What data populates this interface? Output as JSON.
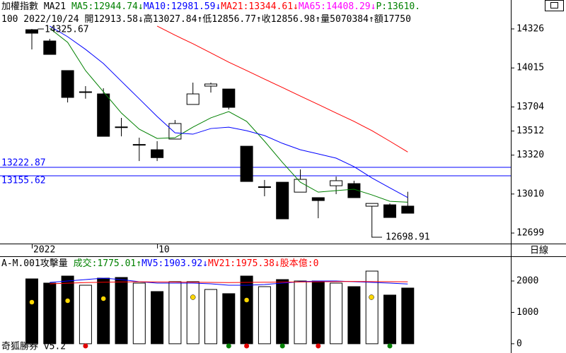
{
  "header": {
    "line1": [
      {
        "text": "加權指數 MA21 ",
        "color": "#000000"
      },
      {
        "text": "MA5:12944.74↓",
        "color": "#008000"
      },
      {
        "text": "MA10:12981.59↓",
        "color": "#0000ff"
      },
      {
        "text": "MA21:13344.61↓",
        "color": "#ff0000"
      },
      {
        "text": "MA65:14408.29↓",
        "color": "#ff00ff"
      },
      {
        "text": "P:13610.",
        "color": "#008000"
      }
    ],
    "line2": [
      {
        "text": "100 2022/10/24 開12913.58↓高13027.84↑低12856.77↑收12856.98↑量5070384↑額17750",
        "color": "#000000"
      }
    ]
  },
  "ui": {
    "period": "日線",
    "footer": "奇狐勝券 v5.2"
  },
  "chart_data": [
    {
      "type": "candlestick",
      "categories": [
        "2022",
        null,
        null,
        null,
        null,
        null,
        null,
        "10",
        null,
        null,
        null,
        null,
        null,
        null,
        null,
        null,
        null,
        null,
        null,
        null,
        null,
        null
      ],
      "open": [
        14320,
        14230,
        13994,
        13825,
        13808,
        13545,
        13405,
        13363,
        13448,
        13724,
        13870,
        13847,
        13391,
        13068,
        13104,
        13025,
        12981,
        13076,
        13093,
        12913,
        12924,
        12913.58
      ],
      "high": [
        14325.67,
        14247,
        13994,
        13870,
        13853,
        13617,
        13459,
        13431,
        13600,
        13898,
        13898,
        13847,
        13391,
        13122,
        13104,
        13206,
        12981,
        13149,
        13116,
        12935,
        12935,
        13027.84
      ],
      "low": [
        14163,
        14123,
        13740,
        13770,
        13470,
        13470,
        13273,
        13273,
        13448,
        13724,
        13819,
        13684,
        13110,
        12992,
        12812,
        13025,
        12817,
        13009,
        12981,
        12698.91,
        12823,
        12856.77
      ],
      "close": [
        14292,
        14123,
        13780,
        13820,
        13470,
        13540,
        13400,
        13300,
        13572,
        13808,
        13887,
        13701,
        13110,
        13062,
        12812,
        13127,
        12958,
        13116,
        12981,
        12935,
        12823,
        12856.98
      ],
      "up_color": "#ffffff",
      "down_color": "#000000",
      "ma": [
        {
          "color": "#008000",
          "values": [
            null,
            14331,
            14219,
            13994,
            13825,
            13656,
            13527,
            13453,
            13459,
            13543,
            13617,
            13667,
            13589,
            13431,
            13262,
            13104,
            13025,
            13037,
            13048,
            13003,
            12952,
            12944.74
          ]
        },
        {
          "color": "#0000ff",
          "values": [
            null,
            14349,
            14264,
            14163,
            14050,
            13909,
            13769,
            13628,
            13498,
            13487,
            13532,
            13543,
            13515,
            13476,
            13414,
            13363,
            13330,
            13296,
            13228,
            13138,
            13059,
            12981.59
          ]
        },
        {
          "color": "#ff0000",
          "values": [
            null,
            null,
            null,
            null,
            null,
            null,
            null,
            14349,
            14276,
            14208,
            14135,
            14061,
            13994,
            13926,
            13859,
            13791,
            13724,
            13656,
            13589,
            13515,
            13431,
            13344.61
          ]
        }
      ],
      "hlines": [
        13222.87,
        13155.62
      ],
      "hline_color": "#0000ff",
      "ylim": [
        12615,
        14354
      ],
      "yticks": [
        12699,
        13010,
        13320,
        13512,
        13704,
        14015,
        14326
      ]
    },
    {
      "type": "bar",
      "title": [
        {
          "text": "A-M.001攻擊量 ",
          "color": "#000000"
        },
        {
          "text": "成交:1775.01↑",
          "color": "#008000"
        },
        {
          "text": "MV5:1903.92↓",
          "color": "#0000ff"
        },
        {
          "text": "MV21:1975.38↓",
          "color": "#ff0000"
        },
        {
          "text": "股本億:0",
          "color": "#ff0000"
        }
      ],
      "values": [
        2067,
        1933,
        2157,
        1865,
        2090,
        2112,
        1933,
        1663,
        1978,
        1978,
        1730,
        1596,
        2157,
        1820,
        2045,
        2000,
        2000,
        1933,
        1820,
        2315,
        1551,
        1775.01
      ],
      "colors": [
        "#000000",
        "#000000",
        "#000000",
        "#ffffff",
        "#000000",
        "#000000",
        "#ffffff",
        "#000000",
        "#ffffff",
        "#ffffff",
        "#ffffff",
        "#000000",
        "#000000",
        "#ffffff",
        "#000000",
        "#ffffff",
        "#000000",
        "#ffffff",
        "#000000",
        "#ffffff",
        "#000000",
        "#000000"
      ],
      "series": [
        {
          "color": "#0000ff",
          "values": [
            null,
            1955,
            2000,
            2045,
            2090,
            2045,
            1978,
            1933,
            1933,
            1933,
            1910,
            1865,
            1865,
            1888,
            1933,
            1978,
            2000,
            2000,
            1978,
            1955,
            1933,
            1903.92
          ]
        },
        {
          "color": "#ff0000",
          "values": [
            null,
            1910,
            1930,
            1950,
            1960,
            1970,
            1975,
            1970,
            1965,
            1960,
            1955,
            1950,
            1955,
            1960,
            1965,
            1970,
            1975,
            1980,
            1985,
            1980,
            1978,
            1975.38
          ]
        }
      ],
      "ylim": [
        -70,
        2630
      ],
      "yticks": [
        0,
        1000,
        2000
      ]
    }
  ]
}
